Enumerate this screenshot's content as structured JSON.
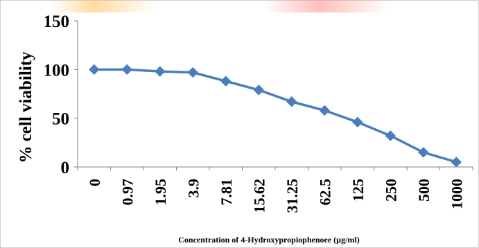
{
  "chart_data": {
    "type": "line",
    "ylabel": "% cell viability",
    "xlabel": "Concentration of 4-Hydroxypropiophenoee (µg/ml)",
    "categories": [
      "0",
      "0.97",
      "1.95",
      "3.9",
      "7.81",
      "15.62",
      "31.25",
      "62.5",
      "125",
      "250",
      "500",
      "1000"
    ],
    "series": [
      {
        "values": [
          100,
          100,
          98,
          97,
          88,
          79,
          67,
          58,
          46,
          32,
          15,
          5
        ]
      }
    ],
    "ylim": [
      0,
      150
    ],
    "yticks": [
      0,
      50,
      100,
      150
    ],
    "grid": false,
    "colors": {
      "line": "#4a7ebb",
      "marker": "#4a7ebb",
      "axis": "#7f7f7f",
      "text": "#000000"
    }
  }
}
